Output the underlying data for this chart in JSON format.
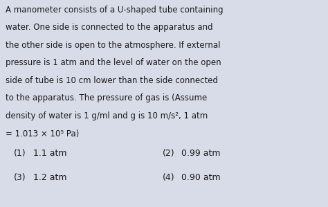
{
  "background_color": "#d8dce8",
  "text_color": "#1a1a1a",
  "lines": [
    "A manometer consists of a U-shaped tube containing",
    "water. One side is connected to the apparatus and",
    "the other side is open to the atmosphere. If external",
    "pressure is 1 atm and the level of water on the open",
    "side of tube is 10 cm lower than the side connected",
    "to the apparatus. The pressure of gas is (Assume",
    "density of water is 1 g/ml and g is 10 m/s², 1 atm",
    "= 1.013 × 10⁵ Pa)"
  ],
  "options": [
    {
      "num": "(1)",
      "val": "1.1 atm",
      "col": 0
    },
    {
      "num": "(3)",
      "val": "1.2 atm",
      "col": 0
    },
    {
      "num": "(2)",
      "val": "0.99 atm",
      "col": 1
    },
    {
      "num": "(4)",
      "val": "0.90 atm",
      "col": 1
    }
  ],
  "font_size_para": 8.5,
  "font_size_opts": 9.0,
  "fig_width": 4.74,
  "fig_height": 2.99,
  "dpi": 100
}
